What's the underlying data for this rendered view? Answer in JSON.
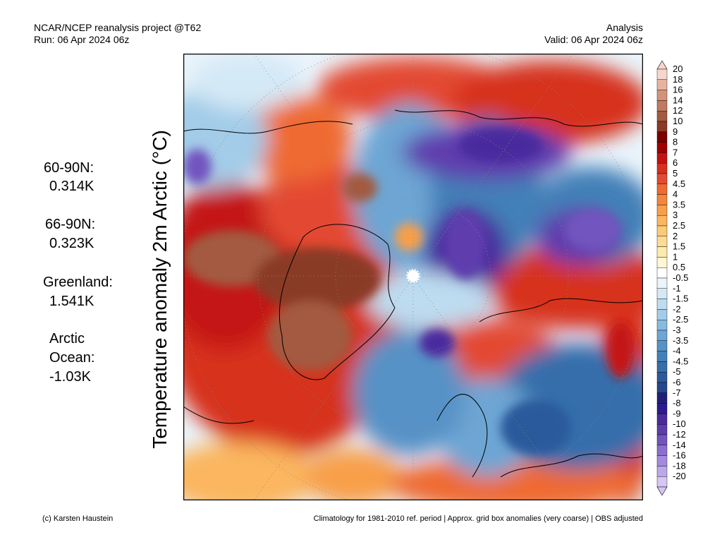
{
  "header": {
    "title_line1": "NCAR/NCEP reanalysis project @T62",
    "title_line2": "Run: 06 Apr 2024 06z",
    "right_line1": "Analysis",
    "right_line2": "Valid: 06 Apr 2024 06z"
  },
  "y_axis_label": "Temperature anomaly 2m Arctic (°C)",
  "stats": {
    "a_label": "60-90N:",
    "a_value": "0.314K",
    "b_label": "66-90N:",
    "b_value": "0.323K",
    "c_label": "Greenland:",
    "c_value": "1.541K",
    "d_label1": "Arctic",
    "d_label2": "Ocean:",
    "d_value": "-1.03K"
  },
  "footer": {
    "credit": "(c) Karsten Haustein",
    "note": "Climatology for 1981-2010 ref. period | Approx. grid box anomalies (very coarse) | OBS adjusted"
  },
  "colorbar": {
    "labels": [
      "20",
      "18",
      "16",
      "14",
      "12",
      "10",
      "9",
      "8",
      "7",
      "6",
      "5",
      "4.5",
      "4",
      "3.5",
      "3",
      "2.5",
      "2",
      "1.5",
      "1",
      "0.5",
      "-0.5",
      "-1",
      "-1.5",
      "-2",
      "-2.5",
      "-3",
      "-3.5",
      "-4",
      "-4.5",
      "-5",
      "-6",
      "-7",
      "-8",
      "-9",
      "-10",
      "-12",
      "-14",
      "-16",
      "-18",
      "-20"
    ],
    "colors": [
      "#f6d6cc",
      "#e7b3a0",
      "#d49378",
      "#c07a5e",
      "#a35a40",
      "#8a3a26",
      "#7a0000",
      "#a10000",
      "#c41212",
      "#d7301f",
      "#e34a33",
      "#ef6a30",
      "#f5853a",
      "#f89f4a",
      "#fbb65e",
      "#fdca76",
      "#fedb92",
      "#feeaad",
      "#fff6d2",
      "#ffffff",
      "#eaf4fb",
      "#d4e9f6",
      "#bddcf0",
      "#a3cce8",
      "#87badf",
      "#6da6d4",
      "#5692c6",
      "#4380b8",
      "#356eab",
      "#2b5a9c",
      "#24478c",
      "#221f7a",
      "#2d1a8e",
      "#4a2a9e",
      "#5e3cad",
      "#7254bf",
      "#8a6fd0",
      "#a38ade",
      "#bca7ea",
      "#d6c6f4"
    ]
  }
}
